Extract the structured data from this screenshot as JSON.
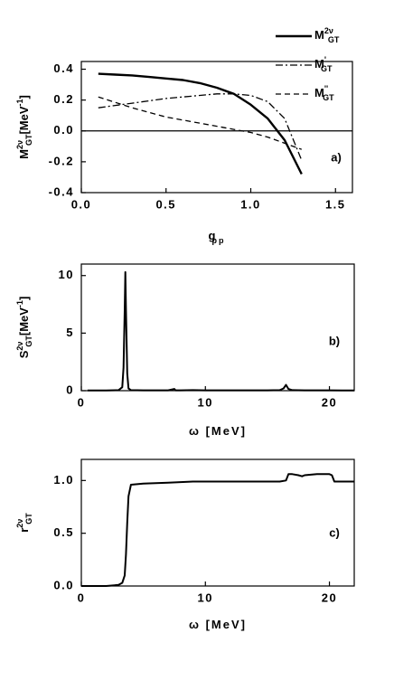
{
  "chart_data": [
    {
      "type": "line",
      "xlabel": {
        "text": "g",
        "sub": "pp"
      },
      "ylabel": {
        "text": "M",
        "sup": "2ν",
        "sub": "GT",
        "unit": "[MeV",
        "unit_sup": "-1",
        "unit_end": "]"
      },
      "annotation": "a)",
      "x": [
        0.1,
        0.2,
        0.3,
        0.4,
        0.5,
        0.6,
        0.7,
        0.8,
        0.9,
        1.0,
        1.1,
        1.2,
        1.3
      ],
      "series": [
        {
          "name": "M",
          "name_sup": "2ν",
          "name_sub": "GT",
          "color": "#000000",
          "dash": "solid",
          "values": [
            0.37,
            0.365,
            0.36,
            0.35,
            0.34,
            0.33,
            0.31,
            0.28,
            0.24,
            0.17,
            0.08,
            -0.06,
            -0.28
          ]
        },
        {
          "name": "M",
          "name_sup": "'",
          "name_sub": "GT",
          "color": "#000000",
          "dash": "dashdot",
          "values": [
            0.15,
            0.165,
            0.18,
            0.195,
            0.21,
            0.22,
            0.23,
            0.24,
            0.24,
            0.23,
            0.19,
            0.08,
            -0.19
          ]
        },
        {
          "name": "M",
          "name_sup": "''",
          "name_sub": "GT",
          "color": "#000000",
          "dash": "dashed",
          "values": [
            0.22,
            0.185,
            0.15,
            0.12,
            0.09,
            0.07,
            0.05,
            0.03,
            0.01,
            -0.01,
            -0.04,
            -0.08,
            -0.12
          ]
        }
      ],
      "reference_line": 0,
      "legend": "upper right",
      "xlim": [
        0,
        1.6
      ],
      "xticks": [
        {
          "value": 0,
          "label": "0.0"
        },
        0.5,
        {
          "value": 1,
          "label": "1.0"
        },
        1.5
      ],
      "ylim": [
        -0.4,
        0.45
      ],
      "yticks": [
        -0.4,
        -0.2,
        {
          "value": 0,
          "label": "0.0"
        },
        0.2,
        0.4
      ]
    },
    {
      "type": "line",
      "xlabel": {
        "text": "ω [MeV]"
      },
      "ylabel": {
        "text": "S",
        "sup": "2ν",
        "sub": "GT",
        "unit": "[MeV",
        "unit_sup": "-1",
        "unit_end": "]"
      },
      "annotation": "b)",
      "color": "#000000",
      "x": [
        0.5,
        1,
        2,
        3,
        3.3,
        3.4,
        3.5,
        3.55,
        3.6,
        3.7,
        3.8,
        4,
        5,
        6,
        7,
        7.5,
        7.6,
        8,
        9,
        10,
        11,
        12,
        13,
        14,
        15,
        16,
        16.3,
        16.5,
        16.7,
        17,
        18,
        19,
        20,
        21,
        22
      ],
      "values": [
        0.02,
        0.02,
        0.02,
        0.05,
        0.3,
        2,
        7,
        10.3,
        7,
        1.5,
        0.2,
        0.05,
        0.03,
        0.03,
        0.03,
        0.15,
        0.03,
        0.03,
        0.05,
        0.03,
        0.03,
        0.03,
        0.03,
        0.03,
        0.03,
        0.05,
        0.2,
        0.5,
        0.15,
        0.05,
        0.03,
        0.03,
        0.03,
        0.02,
        0.02
      ],
      "xlim": [
        0,
        22
      ],
      "xticks": [
        0,
        10,
        20
      ],
      "ylim": [
        0,
        11
      ],
      "yticks": [
        0,
        5,
        10
      ]
    },
    {
      "type": "line",
      "xlabel": {
        "text": "ω [MeV]"
      },
      "ylabel": {
        "text": "r",
        "sup": "2ν",
        "sub": "GT"
      },
      "annotation": "c)",
      "color": "#000000",
      "x": [
        0,
        2,
        3,
        3.3,
        3.5,
        3.6,
        3.7,
        3.8,
        4,
        5,
        7,
        9,
        10,
        12,
        14,
        16,
        16.5,
        16.7,
        17,
        17.5,
        17.8,
        18,
        19,
        20,
        20.2,
        20.4,
        21,
        22
      ],
      "values": [
        0,
        0,
        0.01,
        0.03,
        0.1,
        0.3,
        0.6,
        0.85,
        0.96,
        0.97,
        0.98,
        0.99,
        0.99,
        0.99,
        0.99,
        0.99,
        1.0,
        1.06,
        1.06,
        1.05,
        1.04,
        1.05,
        1.06,
        1.06,
        1.05,
        0.99,
        0.99,
        0.99
      ],
      "xlim": [
        0,
        22
      ],
      "xticks": [
        0,
        10,
        20
      ],
      "ylim": [
        0,
        1.2
      ],
      "yticks": [
        {
          "value": 0,
          "label": "0.0"
        },
        0.5,
        {
          "value": 1,
          "label": "1.0"
        }
      ]
    }
  ]
}
